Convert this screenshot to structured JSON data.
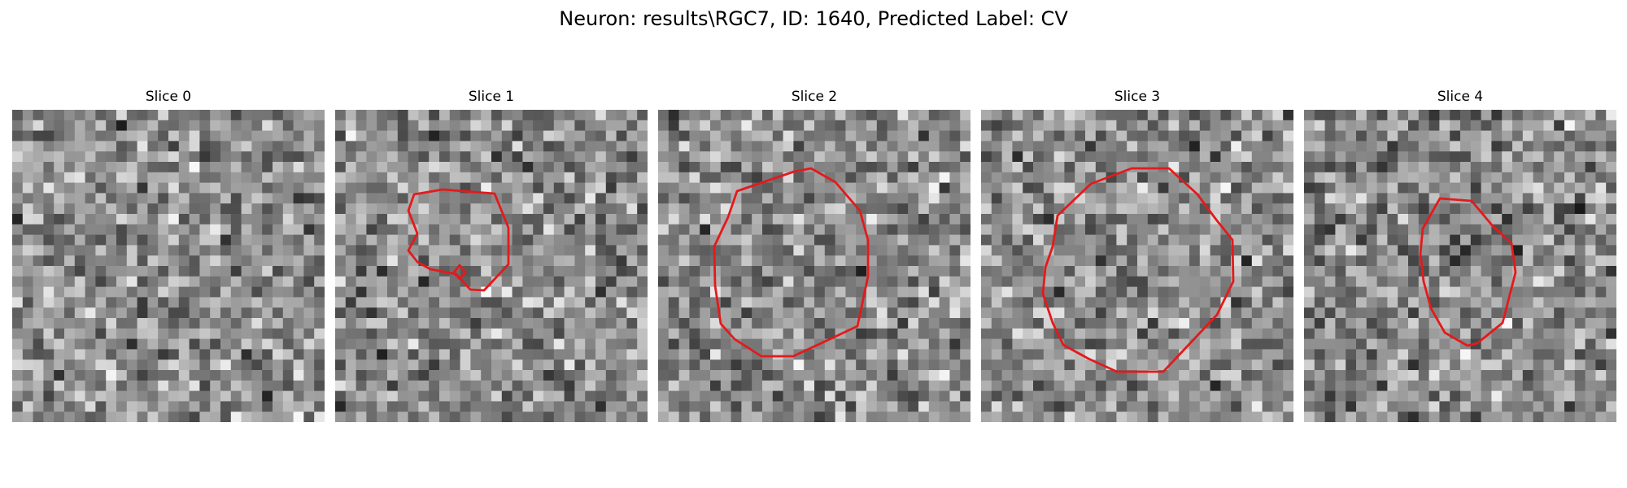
{
  "figure": {
    "title": "Neuron: results\\RGC7, ID: 1640, Predicted Label: CV",
    "contour_color": "#e31a1c",
    "colormap": "gray"
  },
  "slices": [
    {
      "title": "Slice 0",
      "has_contour": false,
      "seed": 11
    },
    {
      "title": "Slice 1",
      "has_contour": true,
      "seed": 23
    },
    {
      "title": "Slice 2",
      "has_contour": true,
      "seed": 37
    },
    {
      "title": "Slice 3",
      "has_contour": true,
      "seed": 51
    },
    {
      "title": "Slice 4",
      "has_contour": true,
      "seed": 67
    }
  ]
}
